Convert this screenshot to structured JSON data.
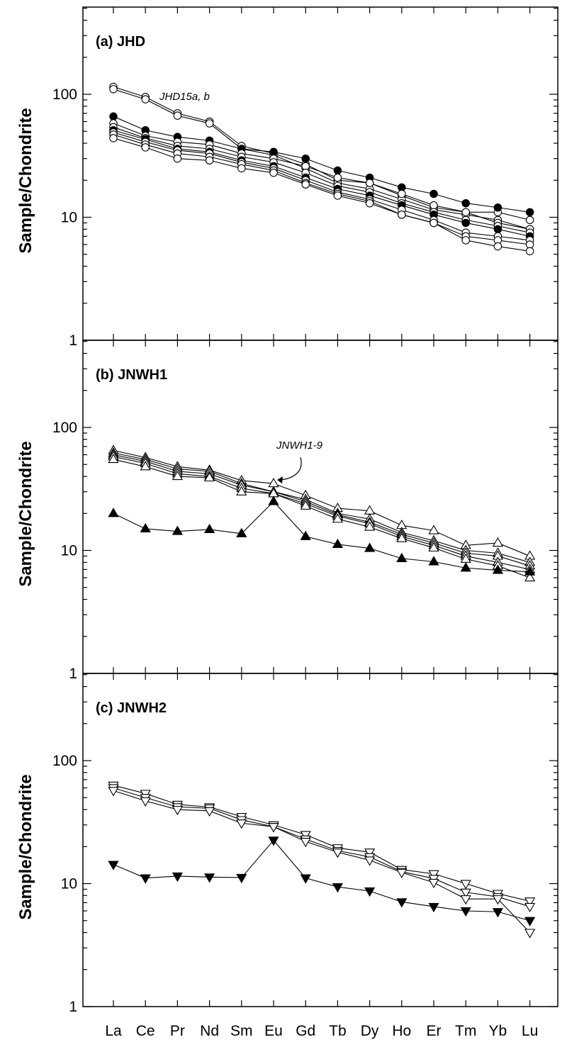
{
  "chart_data": [
    {
      "type": "line",
      "title": "(a) JHD",
      "ylabel": "Sample/Chondrite",
      "yscale": "log",
      "ylim": [
        1,
        500
      ],
      "yticks": [
        "1",
        "10",
        "100"
      ],
      "categories": [
        "La",
        "Ce",
        "Pr",
        "Nd",
        "Sm",
        "Eu",
        "Gd",
        "Tb",
        "Dy",
        "Ho",
        "Er",
        "Tm",
        "Yb",
        "Lu"
      ],
      "annotations": [
        {
          "text": "JHD15a, b"
        }
      ],
      "series": [
        {
          "marker": "circle-open",
          "values": [
            115,
            95,
            70,
            60,
            38,
            33,
            27,
            20,
            19,
            15,
            12,
            11,
            11,
            9.5
          ]
        },
        {
          "marker": "circle-open",
          "values": [
            110,
            91,
            67,
            58,
            36,
            32,
            25,
            19,
            17,
            14,
            11.5,
            10.5,
            9.5,
            8
          ]
        },
        {
          "marker": "circle-filled",
          "values": [
            66,
            51,
            45,
            42,
            36,
            34,
            30,
            24,
            21,
            17.5,
            15.5,
            13,
            12,
            11
          ]
        },
        {
          "marker": "circle-open",
          "values": [
            58,
            46,
            41,
            39,
            33,
            30,
            26,
            21,
            19,
            15.5,
            12.5,
            11,
            9,
            8
          ]
        },
        {
          "marker": "circle-open",
          "values": [
            54,
            44,
            38,
            36,
            31,
            28,
            23,
            18,
            16,
            13,
            11,
            9.5,
            8.5,
            7.5
          ]
        },
        {
          "marker": "circle-filled",
          "values": [
            51,
            43,
            36,
            34,
            29,
            26,
            21,
            17,
            15,
            12.5,
            10.5,
            9,
            8,
            7
          ]
        },
        {
          "marker": "circle-open",
          "values": [
            49,
            41,
            35,
            33,
            28,
            25,
            20,
            16,
            14,
            11.5,
            9.5,
            7.5,
            7,
            6.5
          ]
        },
        {
          "marker": "circle-open",
          "values": [
            47,
            39,
            33,
            31,
            27,
            24,
            19,
            15.5,
            13.5,
            10.5,
            9,
            7,
            6.5,
            6
          ]
        },
        {
          "marker": "circle-open",
          "values": [
            44,
            37,
            30,
            29,
            25,
            23,
            18.5,
            15,
            13,
            10.5,
            9,
            6.5,
            5.8,
            5.3
          ]
        }
      ]
    },
    {
      "type": "line",
      "title": "(b) JNWH1",
      "ylabel": "Sample/Chondrite",
      "yscale": "log",
      "ylim": [
        1,
        500
      ],
      "yticks": [
        "1",
        "10",
        "100"
      ],
      "categories": [
        "La",
        "Ce",
        "Pr",
        "Nd",
        "Sm",
        "Eu",
        "Gd",
        "Tb",
        "Dy",
        "Ho",
        "Er",
        "Tm",
        "Yb",
        "Lu"
      ],
      "annotations": [
        {
          "text": "JNWH1-9"
        }
      ],
      "series": [
        {
          "marker": "triangle-up-open",
          "values": [
            65,
            57,
            48,
            45,
            37,
            35,
            28,
            22,
            21,
            16,
            14.5,
            11,
            11.5,
            9
          ]
        },
        {
          "marker": "triangle-up-open",
          "values": [
            62,
            55,
            46,
            44,
            35,
            30,
            26,
            20,
            18,
            14,
            12,
            10,
            9.5,
            8
          ]
        },
        {
          "marker": "triangle-up-open",
          "values": [
            60,
            53,
            44,
            42,
            34,
            30,
            25,
            19.5,
            17,
            13.5,
            11.5,
            9.5,
            9,
            7.5
          ]
        },
        {
          "marker": "triangle-up-open",
          "values": [
            58,
            51,
            42,
            40,
            32,
            29,
            24,
            19,
            16.5,
            13,
            11,
            9,
            8,
            7
          ]
        },
        {
          "marker": "triangle-up-open",
          "values": [
            55,
            48,
            40,
            39,
            30,
            29,
            23,
            18,
            15.5,
            12.5,
            10.5,
            8.5,
            7.5,
            6
          ]
        },
        {
          "marker": "triangle-up-filled",
          "values": [
            20,
            15,
            14.3,
            14.8,
            13.7,
            25,
            13,
            11.2,
            10.4,
            8.6,
            8.1,
            7.2,
            6.9,
            6.7
          ]
        }
      ]
    },
    {
      "type": "line",
      "title": "(c) JNWH2",
      "ylabel": "Sample/Chondrite",
      "yscale": "log",
      "ylim": [
        1,
        500
      ],
      "yticks": [
        "1",
        "10",
        "100"
      ],
      "categories": [
        "La",
        "Ce",
        "Pr",
        "Nd",
        "Sm",
        "Eu",
        "Gd",
        "Tb",
        "Dy",
        "Ho",
        "Er",
        "Tm",
        "Yb",
        "Lu"
      ],
      "annotations": [],
      "series": [
        {
          "marker": "triangle-down-open",
          "values": [
            63,
            54,
            44,
            42,
            35,
            30,
            25,
            19.5,
            18,
            13,
            12,
            10,
            8.3,
            7.2
          ]
        },
        {
          "marker": "triangle-down-open",
          "values": [
            60,
            50,
            42,
            41,
            33,
            29,
            23,
            18.5,
            16.5,
            12.5,
            11,
            8.5,
            7.8,
            6.5
          ]
        },
        {
          "marker": "triangle-down-open",
          "values": [
            57,
            47,
            40,
            39,
            31,
            29,
            22,
            18,
            15.5,
            12.3,
            10.2,
            7.5,
            7.5,
            4
          ]
        },
        {
          "marker": "triangle-down-filled",
          "values": [
            14.3,
            11.1,
            11.5,
            11.3,
            11.2,
            22.5,
            11.1,
            9.4,
            8.7,
            7.1,
            6.5,
            6,
            5.9,
            5
          ]
        }
      ]
    }
  ]
}
